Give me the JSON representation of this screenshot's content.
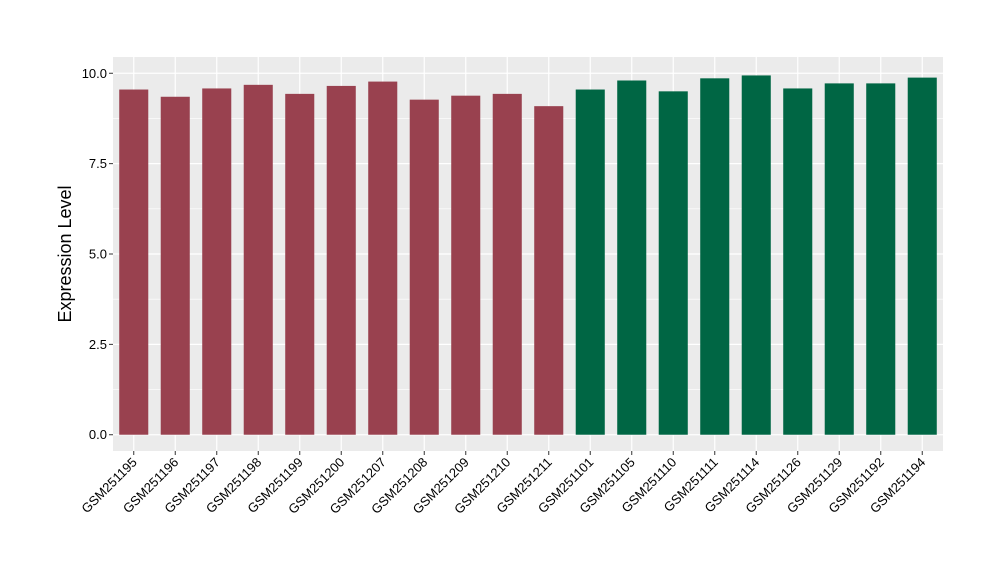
{
  "chart_data": {
    "type": "bar",
    "title": "",
    "xlabel": "",
    "ylabel": "Expression Level",
    "ylim": [
      -0.45,
      10.45
    ],
    "yticks": [
      0.0,
      2.5,
      5.0,
      7.5,
      10.0
    ],
    "ytick_labels": [
      "0.0",
      "2.5",
      "5.0",
      "7.5",
      "10.0"
    ],
    "grid": true,
    "legend": "none",
    "categories": [
      "GSM251195",
      "GSM251196",
      "GSM251197",
      "GSM251198",
      "GSM251199",
      "GSM251200",
      "GSM251207",
      "GSM251208",
      "GSM251209",
      "GSM251210",
      "GSM251211",
      "GSM251101",
      "GSM251105",
      "GSM251110",
      "GSM251111",
      "GSM251114",
      "GSM251126",
      "GSM251129",
      "GSM251192",
      "GSM251194"
    ],
    "values": [
      9.55,
      9.35,
      9.58,
      9.68,
      9.43,
      9.65,
      9.77,
      9.27,
      9.38,
      9.43,
      9.09,
      9.55,
      9.8,
      9.5,
      9.86,
      9.94,
      9.58,
      9.72,
      9.72,
      9.88
    ],
    "groups": [
      0,
      0,
      0,
      0,
      0,
      0,
      0,
      0,
      0,
      0,
      0,
      1,
      1,
      1,
      1,
      1,
      1,
      1,
      1,
      1
    ],
    "group_colors": [
      "#99414f",
      "#006644"
    ],
    "panel_color": "#ebebeb",
    "grid_color": "#ffffff"
  }
}
